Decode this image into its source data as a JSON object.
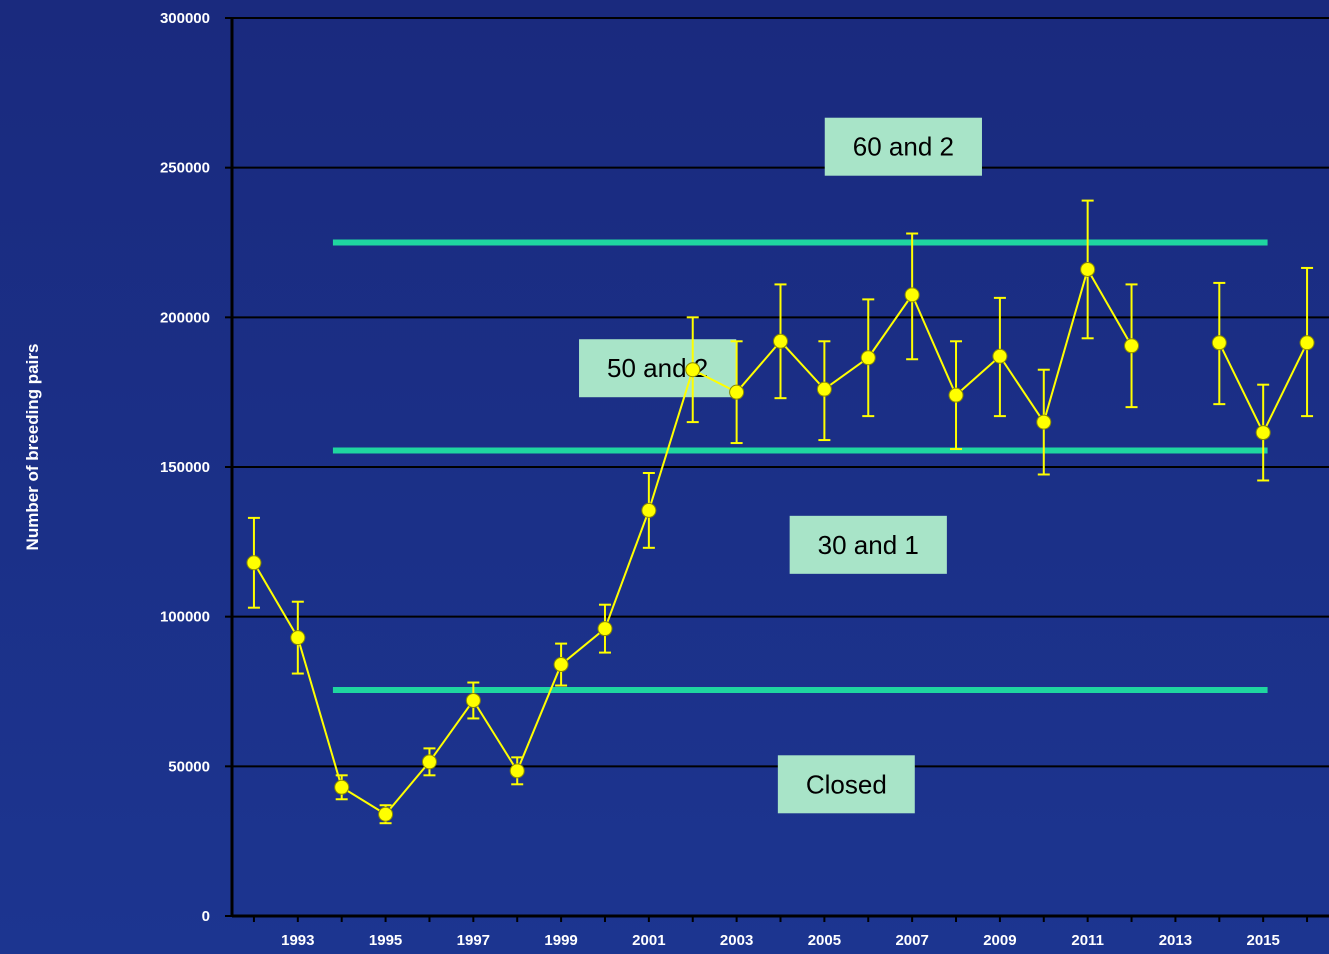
{
  "chart_data": {
    "type": "line",
    "title": "",
    "xlabel": "",
    "ylabel": "Number of breeding pairs",
    "ylim": [
      0,
      300000
    ],
    "xlim": [
      1991.5,
      2016.5
    ],
    "yticks": [
      0,
      50000,
      100000,
      150000,
      200000,
      250000,
      300000
    ],
    "yticklabels": [
      "0",
      "50000",
      "100000",
      "150000",
      "200000",
      "250000",
      "300000"
    ],
    "xticklabels": [
      "1993",
      "1995",
      "1997",
      "1999",
      "2001",
      "2003",
      "2005",
      "2007",
      "2009",
      "2011",
      "2013",
      "2015"
    ],
    "grid": "horizontal",
    "series": [
      {
        "color": "#ffff00",
        "points": [
          {
            "x": 1992,
            "y": 118000,
            "lo": 103000,
            "hi": 133000
          },
          {
            "x": 1993,
            "y": 93000,
            "lo": 81000,
            "hi": 105000
          },
          {
            "x": 1994,
            "y": 43000,
            "lo": 39000,
            "hi": 47000
          },
          {
            "x": 1995,
            "y": 34000,
            "lo": 31000,
            "hi": 37000
          },
          {
            "x": 1996,
            "y": 51500,
            "lo": 47000,
            "hi": 56000
          },
          {
            "x": 1997,
            "y": 72000,
            "lo": 66000,
            "hi": 78000
          },
          {
            "x": 1998,
            "y": 48500,
            "lo": 44000,
            "hi": 53000
          },
          {
            "x": 1999,
            "y": 84000,
            "lo": 77000,
            "hi": 91000
          },
          {
            "x": 2000,
            "y": 96000,
            "lo": 88000,
            "hi": 104000
          },
          {
            "x": 2001,
            "y": 135500,
            "lo": 123000,
            "hi": 148000
          },
          {
            "x": 2002,
            "y": 182500,
            "lo": 165000,
            "hi": 200000
          },
          {
            "x": 2003,
            "y": 175000,
            "lo": 158000,
            "hi": 192000
          },
          {
            "x": 2004,
            "y": 192000,
            "lo": 173000,
            "hi": 211000
          },
          {
            "x": 2005,
            "y": 176000,
            "lo": 159000,
            "hi": 192000
          },
          {
            "x": 2006,
            "y": 186500,
            "lo": 167000,
            "hi": 206000
          },
          {
            "x": 2007,
            "y": 207500,
            "lo": 186000,
            "hi": 228000
          },
          {
            "x": 2008,
            "y": 174000,
            "lo": 156000,
            "hi": 192000
          },
          {
            "x": 2009,
            "y": 187000,
            "lo": 167000,
            "hi": 206500
          },
          {
            "x": 2010,
            "y": 165000,
            "lo": 147500,
            "hi": 182500
          },
          {
            "x": 2011,
            "y": 216000,
            "lo": 193000,
            "hi": 239000
          },
          {
            "x": 2012,
            "y": 190500,
            "lo": 170000,
            "hi": 211000
          },
          {
            "x": 2013,
            "y": null
          },
          {
            "x": 2014,
            "y": 191500,
            "lo": 171000,
            "hi": 211500
          },
          {
            "x": 2015,
            "y": 161500,
            "lo": 145500,
            "hi": 177500
          },
          {
            "x": 2016,
            "y": 191500,
            "lo": 167000,
            "hi": 216500
          }
        ]
      }
    ],
    "thresholds": [
      {
        "y": 225000,
        "x_start": 1993.8,
        "x_end": 2015.1,
        "color": "#1fd6a0"
      },
      {
        "y": 155500,
        "x_start": 1993.8,
        "x_end": 2015.1,
        "color": "#1fd6a0"
      },
      {
        "y": 75500,
        "x_start": 1993.8,
        "x_end": 2015.1,
        "color": "#1fd6a0"
      }
    ],
    "zone_labels": [
      {
        "text": "60 and 2",
        "x": 2006.8,
        "y": 257000
      },
      {
        "text": "50 and 2",
        "x": 2001.2,
        "y": 183000
      },
      {
        "text": "30 and 1",
        "x": 2006.0,
        "y": 124000
      },
      {
        "text": "Closed",
        "x": 2005.5,
        "y": 44000
      }
    ]
  }
}
